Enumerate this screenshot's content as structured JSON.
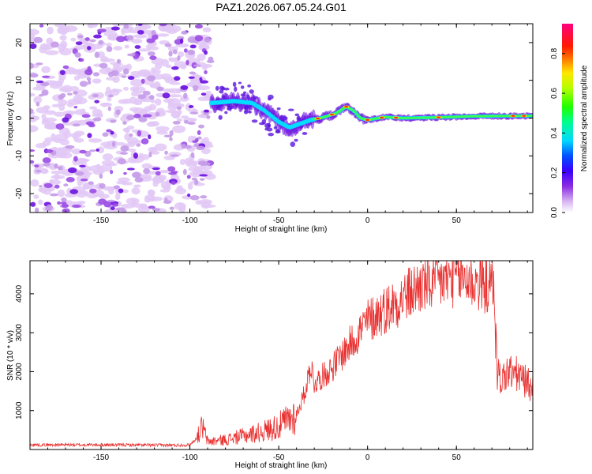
{
  "title": "PAZ1.2026.067.05.24.G01",
  "colorbar_label": "Normalized spectral amplitude",
  "colors": {
    "snr_line": "#e8302f",
    "axis": "#000000",
    "background": "#ffffff"
  },
  "chart_data": [
    {
      "type": "heatmap",
      "xlabel": "Height of straight line (km)",
      "ylabel": "Frequency (Hz)",
      "xlim": [
        -190,
        93
      ],
      "ylim": [
        -25,
        25
      ],
      "xticks": [
        -150,
        -100,
        -50,
        0,
        50
      ],
      "yticks": [
        -20,
        -10,
        0,
        10,
        20
      ],
      "colorbar": {
        "min": 0.0,
        "max": 0.95,
        "ticks": [
          0.0,
          0.2,
          0.4,
          0.6,
          0.8
        ]
      },
      "regions": [
        {
          "name": "noise",
          "x": [
            -190,
            -88
          ],
          "y": [
            -25,
            25
          ],
          "amplitude": 0.1
        },
        {
          "name": "signal",
          "x": [
            -88,
            93
          ],
          "frequency_track": [
            [
              -88,
              4
            ],
            [
              -75,
              4.5
            ],
            [
              -65,
              4
            ],
            [
              -58,
              2
            ],
            [
              -50,
              -1
            ],
            [
              -44,
              -2.5
            ],
            [
              -38,
              -1.5
            ],
            [
              -32,
              -0.5
            ],
            [
              -25,
              0.2
            ],
            [
              -18,
              1.2
            ],
            [
              -12,
              3
            ],
            [
              -8,
              2
            ],
            [
              -4,
              0
            ],
            [
              0,
              -0.5
            ],
            [
              10,
              0.3
            ],
            [
              20,
              0
            ],
            [
              40,
              0.2
            ],
            [
              60,
              0.5
            ],
            [
              93,
              0.6
            ]
          ],
          "amplitude": 0.9
        }
      ]
    },
    {
      "type": "line",
      "xlabel": "Height of straight line (km)",
      "ylabel": "SNR (10 * v/v)",
      "xlim": [
        -190,
        93
      ],
      "ylim": [
        0,
        4850
      ],
      "xticks": [
        -150,
        -100,
        -50,
        0,
        50
      ],
      "yticks": [
        1000,
        2000,
        3000,
        4000
      ],
      "series": [
        {
          "name": "SNR",
          "x": [
            -190,
            -150,
            -110,
            -100,
            -96,
            -93,
            -90,
            -80,
            -70,
            -60,
            -50,
            -40,
            -35,
            -32,
            -30,
            -25,
            -20,
            -10,
            0,
            10,
            20,
            30,
            40,
            50,
            55,
            60,
            65,
            70,
            71,
            72,
            73,
            75,
            80,
            85,
            90,
            93
          ],
          "values": [
            120,
            120,
            110,
            120,
            300,
            600,
            200,
            250,
            350,
            450,
            600,
            900,
            1500,
            2200,
            1700,
            1900,
            2100,
            2700,
            3300,
            3600,
            3900,
            4200,
            4300,
            4450,
            4400,
            4300,
            4250,
            4150,
            4400,
            3000,
            2000,
            1800,
            2000,
            1900,
            1700,
            1600
          ]
        }
      ]
    }
  ]
}
